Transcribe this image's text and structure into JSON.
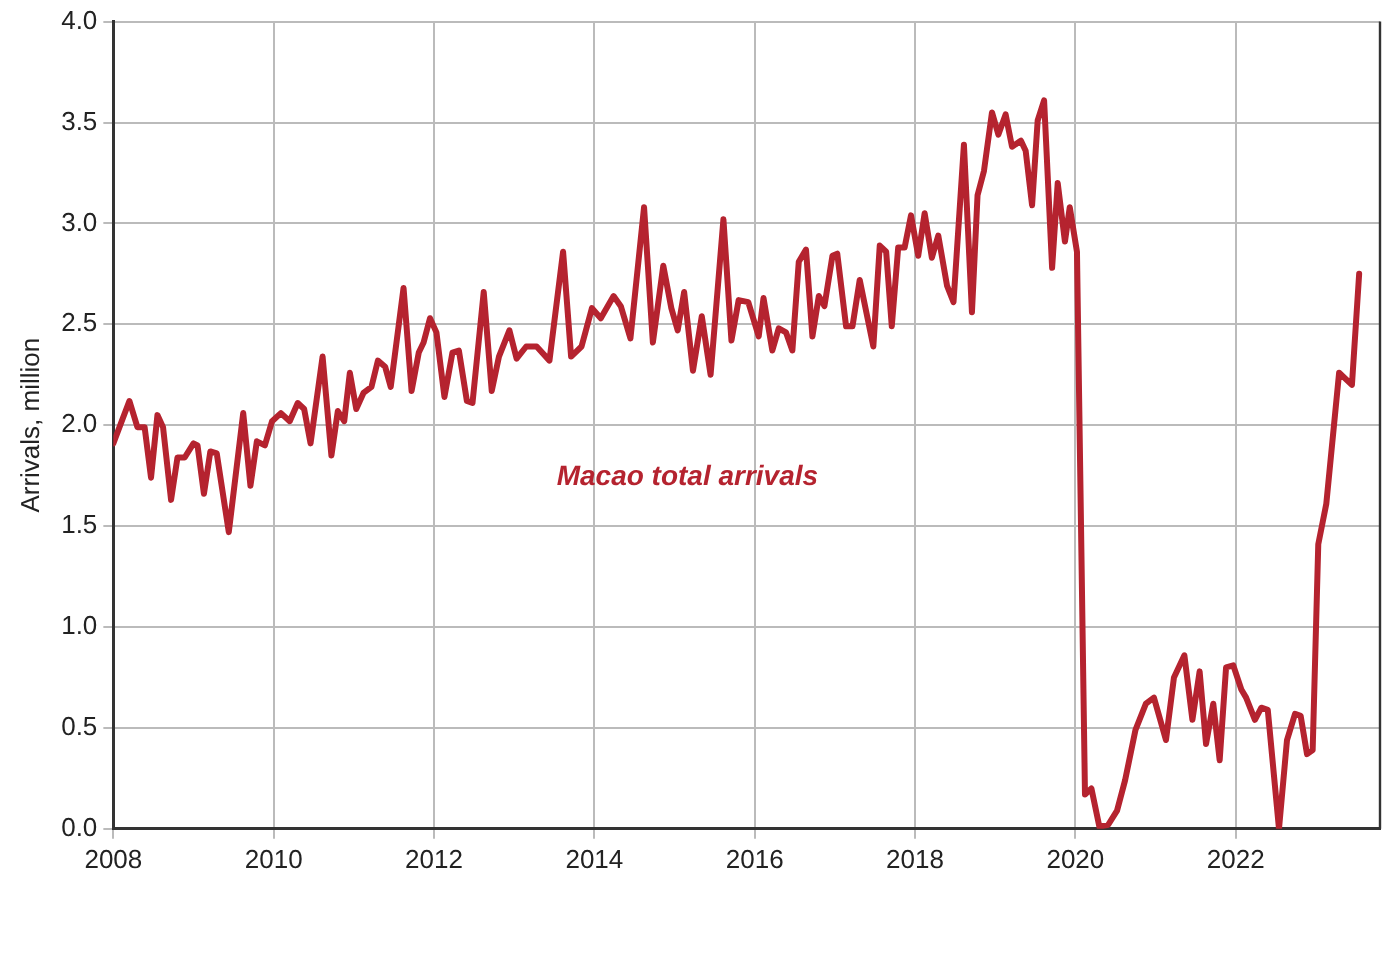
{
  "chart_data": {
    "type": "line",
    "ylabel": "Arrivals, million",
    "xlim": [
      2008,
      2023.8
    ],
    "xticks": [
      2008,
      2010,
      2012,
      2014,
      2016,
      2018,
      2020,
      2022
    ],
    "ylim": [
      0,
      4
    ],
    "yticks": [
      {
        "value": 0,
        "label": "0.0"
      },
      {
        "value": 0.5,
        "label": "0.5"
      },
      {
        "value": 1,
        "label": "1.0"
      },
      {
        "value": 1.5,
        "label": "1.5"
      },
      {
        "value": 2,
        "label": "2.0"
      },
      {
        "value": 2.5,
        "label": "2.5"
      },
      {
        "value": 3,
        "label": "3.0"
      },
      {
        "value": 3.5,
        "label": "3.5"
      },
      {
        "value": 4,
        "label": "4.0"
      }
    ],
    "grid": true,
    "legend": false,
    "marker": "none",
    "line_style": "solid",
    "series": [
      {
        "name": "Macao total arrivals",
        "color": "#b5232f",
        "x": [
          2008.0,
          2008.2,
          2008.3,
          2008.39,
          2008.47,
          2008.55,
          2008.62,
          2008.72,
          2008.8,
          2008.89,
          2009.0,
          2009.05,
          2009.13,
          2009.21,
          2009.29,
          2009.44,
          2009.62,
          2009.71,
          2009.79,
          2009.89,
          2009.98,
          2010.09,
          2010.2,
          2010.3,
          2010.38,
          2010.46,
          2010.61,
          2010.72,
          2010.8,
          2010.88,
          2010.95,
          2011.03,
          2011.12,
          2011.22,
          2011.3,
          2011.39,
          2011.46,
          2011.62,
          2011.72,
          2011.81,
          2011.87,
          2011.95,
          2012.03,
          2012.13,
          2012.23,
          2012.31,
          2012.41,
          2012.48,
          2012.62,
          2012.72,
          2012.81,
          2012.94,
          2013.03,
          2013.15,
          2013.28,
          2013.44,
          2013.61,
          2013.71,
          2013.84,
          2013.97,
          2014.08,
          2014.24,
          2014.33,
          2014.45,
          2014.62,
          2014.73,
          2014.86,
          2014.96,
          2015.04,
          2015.12,
          2015.23,
          2015.34,
          2015.45,
          2015.61,
          2015.71,
          2015.8,
          2015.92,
          2016.05,
          2016.11,
          2016.22,
          2016.3,
          2016.39,
          2016.47,
          2016.55,
          2016.64,
          2016.72,
          2016.8,
          2016.87,
          2016.97,
          2017.03,
          2017.14,
          2017.22,
          2017.31,
          2017.48,
          2017.56,
          2017.64,
          2017.71,
          2017.79,
          2017.87,
          2017.95,
          2018.04,
          2018.12,
          2018.21,
          2018.29,
          2018.4,
          2018.48,
          2018.61,
          2018.71,
          2018.78,
          2018.86,
          2018.96,
          2019.04,
          2019.13,
          2019.21,
          2019.32,
          2019.38,
          2019.46,
          2019.53,
          2019.61,
          2019.71,
          2019.78,
          2019.87,
          2019.93,
          2020.02,
          2020.12,
          2020.2,
          2020.3,
          2020.41,
          2020.52,
          2020.62,
          2020.75,
          2020.88,
          2020.98,
          2021.13,
          2021.23,
          2021.36,
          2021.46,
          2021.55,
          2021.63,
          2021.72,
          2021.8,
          2021.88,
          2021.97,
          2022.07,
          2022.13,
          2022.24,
          2022.32,
          2022.4,
          2022.54,
          2022.64,
          2022.74,
          2022.81,
          2022.89,
          2022.96,
          2023.03,
          2023.13,
          2023.29,
          2023.45,
          2023.54
        ],
        "values": [
          1.91,
          2.12,
          1.99,
          1.99,
          1.74,
          2.05,
          1.99,
          1.63,
          1.84,
          1.84,
          1.91,
          1.9,
          1.66,
          1.87,
          1.86,
          1.47,
          2.06,
          1.7,
          1.92,
          1.9,
          2.02,
          2.06,
          2.02,
          2.11,
          2.08,
          1.91,
          2.34,
          1.85,
          2.07,
          2.02,
          2.26,
          2.08,
          2.16,
          2.19,
          2.32,
          2.29,
          2.19,
          2.68,
          2.17,
          2.36,
          2.41,
          2.53,
          2.46,
          2.14,
          2.36,
          2.37,
          2.12,
          2.11,
          2.66,
          2.17,
          2.34,
          2.47,
          2.33,
          2.39,
          2.39,
          2.32,
          2.86,
          2.34,
          2.39,
          2.58,
          2.53,
          2.64,
          2.59,
          2.43,
          3.08,
          2.41,
          2.79,
          2.58,
          2.47,
          2.66,
          2.27,
          2.54,
          2.25,
          3.02,
          2.42,
          2.62,
          2.61,
          2.44,
          2.63,
          2.37,
          2.48,
          2.46,
          2.37,
          2.81,
          2.87,
          2.44,
          2.64,
          2.59,
          2.84,
          2.85,
          2.49,
          2.49,
          2.72,
          2.39,
          2.89,
          2.86,
          2.49,
          2.88,
          2.88,
          3.04,
          2.84,
          3.05,
          2.83,
          2.94,
          2.69,
          2.61,
          3.39,
          2.56,
          3.14,
          3.26,
          3.55,
          3.44,
          3.54,
          3.38,
          3.41,
          3.36,
          3.09,
          3.51,
          3.61,
          2.78,
          3.2,
          2.91,
          3.08,
          2.86,
          0.17,
          0.2,
          0.01,
          0.02,
          0.09,
          0.24,
          0.49,
          0.62,
          0.65,
          0.44,
          0.75,
          0.86,
          0.54,
          0.78,
          0.42,
          0.62,
          0.34,
          0.8,
          0.81,
          0.69,
          0.65,
          0.54,
          0.6,
          0.59,
          0.0,
          0.44,
          0.57,
          0.56,
          0.37,
          0.39,
          1.41,
          1.61,
          2.26,
          2.2,
          2.75
        ]
      }
    ]
  }
}
